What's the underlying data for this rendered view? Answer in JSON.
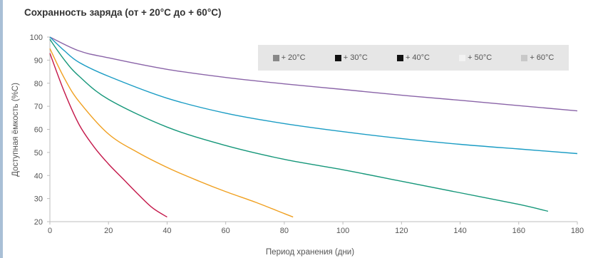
{
  "chart_data": {
    "type": "line",
    "title": "Сохранность заряда (от + 20°C до + 60°C)",
    "xlabel": "Период хранения (дни)",
    "ylabel": "Доступная ёмкость (%С)",
    "xlim": [
      0,
      180
    ],
    "ylim": [
      20,
      100
    ],
    "x_ticks": [
      "0",
      "20",
      "40",
      "60",
      "80",
      "100",
      "120",
      "140",
      "160",
      "180"
    ],
    "y_ticks": [
      "20",
      "30",
      "40",
      "50",
      "60",
      "70",
      "80",
      "90",
      "100"
    ],
    "grid": false,
    "legend_position": "top-right",
    "legend": [
      {
        "name": "+ 20°C",
        "swatch_color": "#888888"
      },
      {
        "name": "+ 30°C",
        "swatch_color": "#111111"
      },
      {
        "name": "+ 40°C",
        "swatch_color": "#111111"
      },
      {
        "name": "+ 50°C",
        "swatch_color": "#f2f2f2"
      },
      {
        "name": "+ 60°C",
        "swatch_color": "#c8c8c8"
      }
    ],
    "series": [
      {
        "color": "#8a64a8",
        "points": [
          [
            0,
            100
          ],
          [
            10,
            94
          ],
          [
            20,
            91
          ],
          [
            40,
            86
          ],
          [
            60,
            82.5
          ],
          [
            80,
            79.7
          ],
          [
            100,
            77.3
          ],
          [
            120,
            74.8
          ],
          [
            140,
            72.6
          ],
          [
            160,
            70.3
          ],
          [
            180,
            68
          ]
        ]
      },
      {
        "color": "#1a9cc4",
        "points": [
          [
            0,
            100
          ],
          [
            5,
            94
          ],
          [
            10,
            89
          ],
          [
            20,
            83
          ],
          [
            40,
            73.5
          ],
          [
            60,
            67
          ],
          [
            80,
            62.5
          ],
          [
            100,
            59
          ],
          [
            120,
            56
          ],
          [
            140,
            53.5
          ],
          [
            160,
            51.5
          ],
          [
            180,
            49.5
          ]
        ]
      },
      {
        "color": "#16977a",
        "points": [
          [
            0,
            99
          ],
          [
            5,
            90
          ],
          [
            10,
            83
          ],
          [
            20,
            73
          ],
          [
            40,
            61
          ],
          [
            60,
            53
          ],
          [
            80,
            47
          ],
          [
            100,
            42.5
          ],
          [
            120,
            37.5
          ],
          [
            140,
            32.5
          ],
          [
            160,
            27.5
          ],
          [
            170,
            24.5
          ]
        ]
      },
      {
        "color": "#f0a020",
        "points": [
          [
            0,
            95
          ],
          [
            5,
            82
          ],
          [
            10,
            72
          ],
          [
            20,
            58
          ],
          [
            30,
            50
          ],
          [
            40,
            43.5
          ],
          [
            50,
            38
          ],
          [
            60,
            33
          ],
          [
            70,
            28.5
          ],
          [
            80,
            23.5
          ],
          [
            83,
            22
          ]
        ]
      },
      {
        "color": "#c4184a",
        "points": [
          [
            0,
            93
          ],
          [
            5,
            76
          ],
          [
            10,
            62
          ],
          [
            15,
            52.5
          ],
          [
            20,
            45
          ],
          [
            25,
            38.5
          ],
          [
            30,
            32
          ],
          [
            35,
            26
          ],
          [
            40,
            22
          ]
        ]
      }
    ]
  }
}
